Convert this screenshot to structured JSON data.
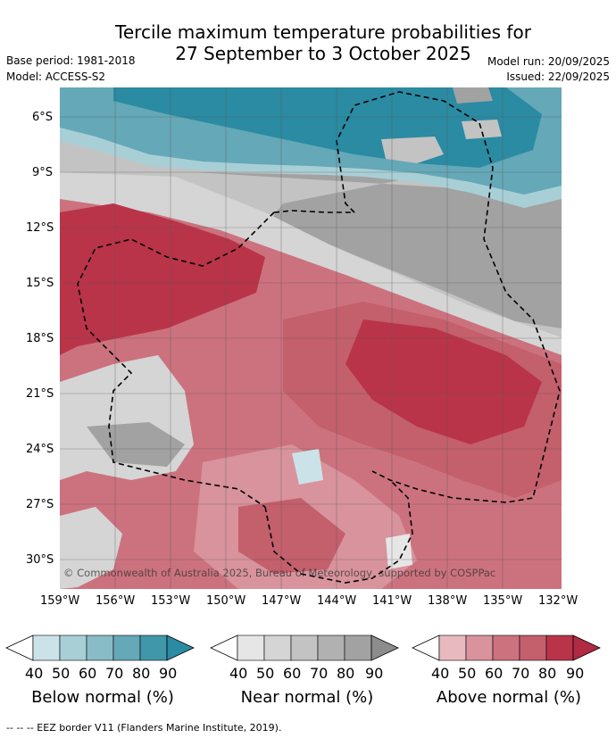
{
  "title_line1": "Tercile maximum temperature probabilities for",
  "title_line2": "27 September to 3 October 2025",
  "base_period": "Base period: 1981-2018",
  "model": "Model: ACCESS-S2",
  "model_run": "Model run: 20/09/2025",
  "issued": "Issued: 22/09/2025",
  "lat_labels": [
    "6°S",
    "9°S",
    "12°S",
    "15°S",
    "18°S",
    "21°S",
    "24°S",
    "27°S",
    "30°S"
  ],
  "lon_labels": [
    "159°W",
    "156°W",
    "153°W",
    "150°W",
    "147°W",
    "144°W",
    "141°W",
    "138°W",
    "135°W",
    "132°W"
  ],
  "copyright": "© Commonwealth of Australia 2025, Bureau of Meteorology, supported by COSPPac",
  "legends": [
    {
      "label": "Below normal (%)",
      "ticks": [
        "40",
        "50",
        "60",
        "70",
        "80",
        "90"
      ],
      "colors": [
        "#cbe3e8",
        "#a9cfd6",
        "#88bcc7",
        "#65a8b8",
        "#3f97a9",
        "#2a8ba2"
      ]
    },
    {
      "label": "Near normal (%)",
      "ticks": [
        "40",
        "50",
        "60",
        "70",
        "80",
        "90"
      ],
      "colors": [
        "#e6e6e6",
        "#d5d5d5",
        "#c3c3c3",
        "#b1b1b1",
        "#a2a2a2",
        "#8c8c8c"
      ]
    },
    {
      "label": "Above normal (%)",
      "ticks": [
        "40",
        "50",
        "60",
        "70",
        "80",
        "90"
      ],
      "colors": [
        "#e8bac0",
        "#d8939c",
        "#cc727e",
        "#c45f6c",
        "#b93449",
        "#b02a44"
      ]
    }
  ],
  "footer": "--  --  -- EEZ border V11 (Flanders Marine Institute, 2019)."
}
